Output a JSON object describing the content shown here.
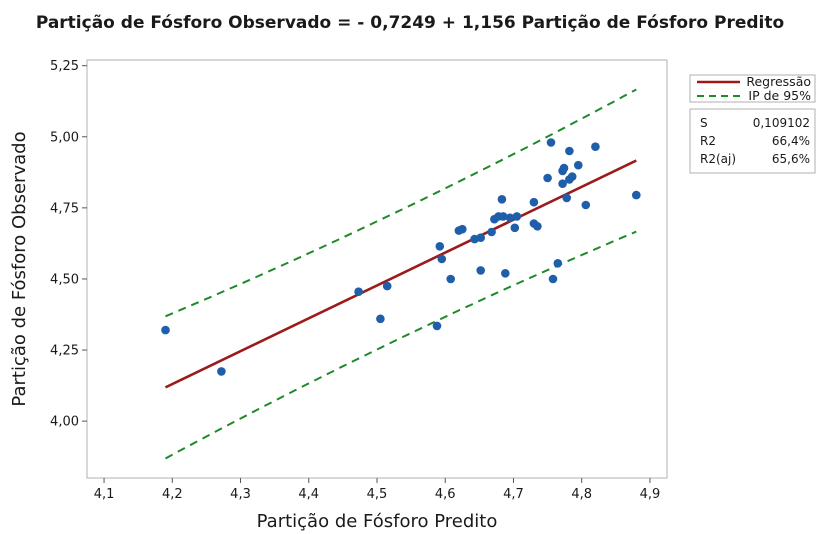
{
  "chart_data": {
    "type": "scatter",
    "title": "Partição de Fósforo Observado = - 0,7249 + 1,156 Partição de Fósforo Predito",
    "xlabel": "Partição de Fósforo Predito",
    "ylabel": "Partição de Fósforo Observado",
    "xlim": [
      4.075,
      4.925
    ],
    "ylim": [
      3.8,
      5.27
    ],
    "xticks": [
      4.1,
      4.2,
      4.3,
      4.4,
      4.5,
      4.6,
      4.7,
      4.8,
      4.9
    ],
    "xtick_labels": [
      "4,1",
      "4,2",
      "4,3",
      "4,4",
      "4,5",
      "4,6",
      "4,7",
      "4,8",
      "4,9"
    ],
    "yticks": [
      4.0,
      4.25,
      4.5,
      4.75,
      5.0,
      5.25
    ],
    "ytick_labels": [
      "4,00",
      "4,25",
      "4,50",
      "4,75",
      "5,00",
      "5,25"
    ],
    "regression": {
      "name": "Regressão",
      "intercept": -0.7249,
      "slope": 1.156,
      "x_range": [
        4.19,
        4.88
      ],
      "color": "#9b1b1b"
    },
    "prediction_interval": {
      "name": "IP de 95%",
      "half_width_at_ends": 0.25,
      "half_width_at_center": 0.225,
      "color": "#1e8a2a"
    },
    "points_color": "#1f5ea8",
    "points": [
      [
        4.19,
        4.32
      ],
      [
        4.272,
        4.175
      ],
      [
        4.473,
        4.455
      ],
      [
        4.505,
        4.36
      ],
      [
        4.515,
        4.475
      ],
      [
        4.588,
        4.335
      ],
      [
        4.592,
        4.615
      ],
      [
        4.595,
        4.57
      ],
      [
        4.608,
        4.5
      ],
      [
        4.62,
        4.67
      ],
      [
        4.625,
        4.675
      ],
      [
        4.643,
        4.64
      ],
      [
        4.652,
        4.645
      ],
      [
        4.652,
        4.53
      ],
      [
        4.668,
        4.665
      ],
      [
        4.672,
        4.71
      ],
      [
        4.678,
        4.72
      ],
      [
        4.683,
        4.78
      ],
      [
        4.685,
        4.72
      ],
      [
        4.688,
        4.52
      ],
      [
        4.695,
        4.715
      ],
      [
        4.702,
        4.68
      ],
      [
        4.705,
        4.72
      ],
      [
        4.73,
        4.77
      ],
      [
        4.73,
        4.695
      ],
      [
        4.735,
        4.685
      ],
      [
        4.75,
        4.855
      ],
      [
        4.755,
        4.98
      ],
      [
        4.758,
        4.5
      ],
      [
        4.765,
        4.555
      ],
      [
        4.772,
        4.835
      ],
      [
        4.772,
        4.88
      ],
      [
        4.774,
        4.89
      ],
      [
        4.778,
        4.785
      ],
      [
        4.782,
        4.85
      ],
      [
        4.782,
        4.95
      ],
      [
        4.786,
        4.86
      ],
      [
        4.795,
        4.9
      ],
      [
        4.806,
        4.76
      ],
      [
        4.82,
        4.965
      ],
      [
        4.88,
        4.795
      ]
    ],
    "grid": false,
    "legend_position": "top-right",
    "legend": [
      {
        "label": "Regressão",
        "style": "solid",
        "color": "#9b1b1b"
      },
      {
        "label": "IP de 95%",
        "style": "dashed",
        "color": "#1e8a2a"
      }
    ],
    "stats": [
      {
        "name": "S",
        "value": "0,109102"
      },
      {
        "name": "R2",
        "value": "66,4%"
      },
      {
        "name": "R2(aj)",
        "value": "65,6%"
      }
    ]
  }
}
